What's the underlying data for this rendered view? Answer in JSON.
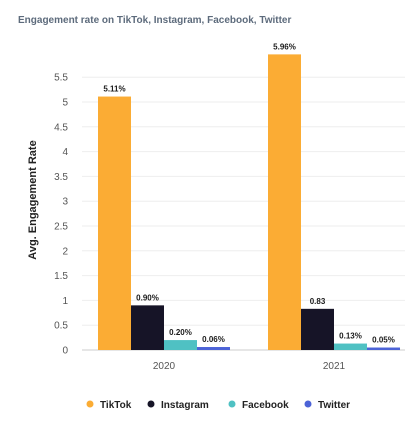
{
  "chart_data": {
    "type": "bar",
    "title": "Engagement rate on TikTok, Instagram, Facebook, Twitter",
    "xlabel": "",
    "ylabel": "Avg. Engagement Rate",
    "categories": [
      "2020",
      "2021"
    ],
    "ylim": [
      0,
      6
    ],
    "yticks": [
      "0",
      "0.5",
      "1",
      "1.5",
      "2",
      "2.5",
      "3",
      "3.5",
      "4",
      "4.5",
      "5",
      "5.5"
    ],
    "grid": true,
    "legend_position": "bottom",
    "series": [
      {
        "name": "TikTok",
        "color": "#fbac34",
        "values": [
          5.11,
          5.96
        ],
        "labels": [
          "5.11%",
          "5.96%"
        ]
      },
      {
        "name": "Instagram",
        "color": "#161427",
        "values": [
          0.9,
          0.83
        ],
        "labels": [
          "0.90%",
          "0.83"
        ]
      },
      {
        "name": "Facebook",
        "color": "#4fc1c3",
        "values": [
          0.2,
          0.13
        ],
        "labels": [
          "0.20%",
          "0.13%"
        ]
      },
      {
        "name": "Twitter",
        "color": "#4c63d7",
        "values": [
          0.06,
          0.05
        ],
        "labels": [
          "0.06%",
          "0.05%"
        ]
      }
    ]
  }
}
